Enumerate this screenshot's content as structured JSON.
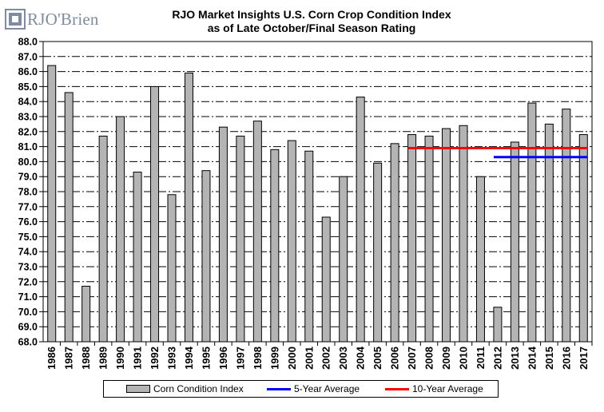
{
  "header": {
    "logo_text": "RJO'Brien",
    "brand_color": "#7d8ca0",
    "title_line1": "RJO Market Insights U.S. Corn Crop Condition Index",
    "title_line2": "as of Late October/Final Season Rating"
  },
  "chart_data": {
    "type": "bar",
    "categories": [
      "1986",
      "1987",
      "1988",
      "1989",
      "1990",
      "1991",
      "1992",
      "1993",
      "1994",
      "1995",
      "1996",
      "1997",
      "1998",
      "1999",
      "2000",
      "2001",
      "2002",
      "2003",
      "2004",
      "2005",
      "2006",
      "2007",
      "2008",
      "2009",
      "2010",
      "2011",
      "2012",
      "2013",
      "2014",
      "2015",
      "2016",
      "2017"
    ],
    "series": [
      {
        "name": "Corn Condition Index",
        "color": "#b4b4b4",
        "values": [
          86.4,
          84.6,
          71.7,
          81.7,
          83.0,
          79.3,
          85.0,
          77.8,
          85.9,
          79.4,
          82.3,
          81.7,
          82.7,
          80.8,
          81.4,
          80.7,
          76.3,
          79.0,
          84.3,
          79.9,
          81.2,
          81.8,
          81.7,
          82.2,
          82.4,
          79.0,
          70.3,
          81.3,
          83.9,
          82.5,
          83.5,
          81.8
        ]
      }
    ],
    "reference_lines": [
      {
        "name": "5-Year Average",
        "color": "#0000ff",
        "value": 80.3,
        "from": "2012",
        "to": "2017"
      },
      {
        "name": "10-Year Average",
        "color": "#ff0000",
        "value": 80.9,
        "from": "2007",
        "to": "2017"
      }
    ],
    "ylim": [
      68.0,
      88.0
    ],
    "ytick_step": 1.0,
    "ytick_labels": [
      "68.0",
      "69.0",
      "70.0",
      "71.0",
      "72.0",
      "73.0",
      "74.0",
      "75.0",
      "76.0",
      "77.0",
      "78.0",
      "79.0",
      "80.0",
      "81.0",
      "82.0",
      "83.0",
      "84.0",
      "85.0",
      "86.0",
      "87.0",
      "88.0"
    ],
    "grid": "horizontal dash-dot",
    "legend_position": "bottom",
    "title": "RJO Market Insights U.S. Corn Crop Condition Index as of Late October/Final Season Rating",
    "xlabel": "",
    "ylabel": ""
  },
  "legend": {
    "items": [
      {
        "label": "Corn Condition Index",
        "kind": "bar",
        "color": "#b4b4b4"
      },
      {
        "label": "5-Year Average",
        "kind": "line",
        "color": "#0000ff"
      },
      {
        "label": "10-Year Average",
        "kind": "line",
        "color": "#ff0000"
      }
    ]
  }
}
